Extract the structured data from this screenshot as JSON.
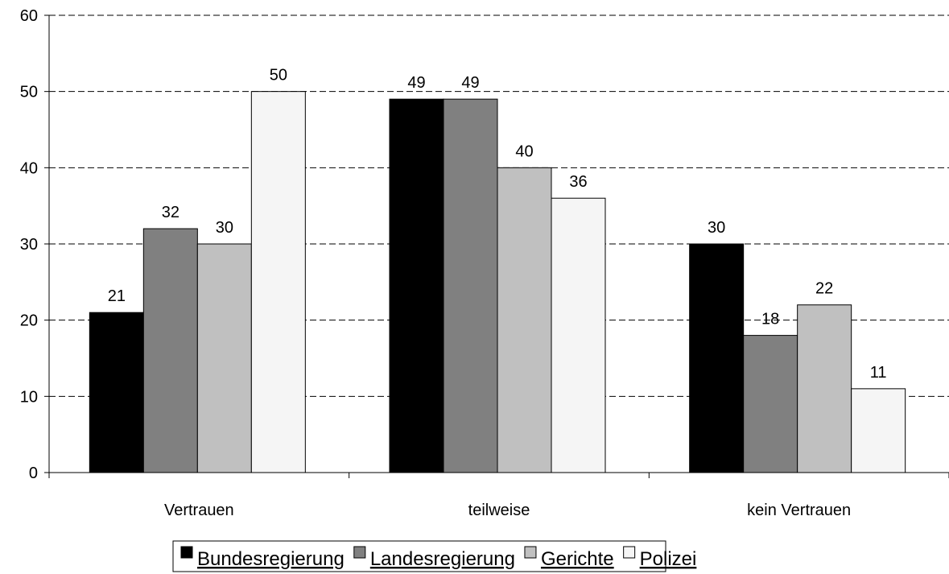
{
  "chart_data": {
    "type": "bar",
    "categories": [
      "Vertrauen",
      "teilweise",
      "kein Vertrauen"
    ],
    "series": [
      {
        "name": "Bundesregierung",
        "values": [
          21,
          49,
          30
        ],
        "color": "#000000"
      },
      {
        "name": "Landesregierung",
        "values": [
          32,
          49,
          18
        ],
        "color": "#808080"
      },
      {
        "name": "Gerichte",
        "values": [
          30,
          40,
          22
        ],
        "color": "#c0c0c0"
      },
      {
        "name": "Polizei",
        "values": [
          50,
          36,
          11
        ],
        "color": "#f5f5f5"
      }
    ],
    "ylim": [
      0,
      60
    ],
    "yticks": [
      0,
      10,
      20,
      30,
      40,
      50,
      60
    ],
    "grid": "dashed horizontal",
    "legend_position": "bottom"
  }
}
